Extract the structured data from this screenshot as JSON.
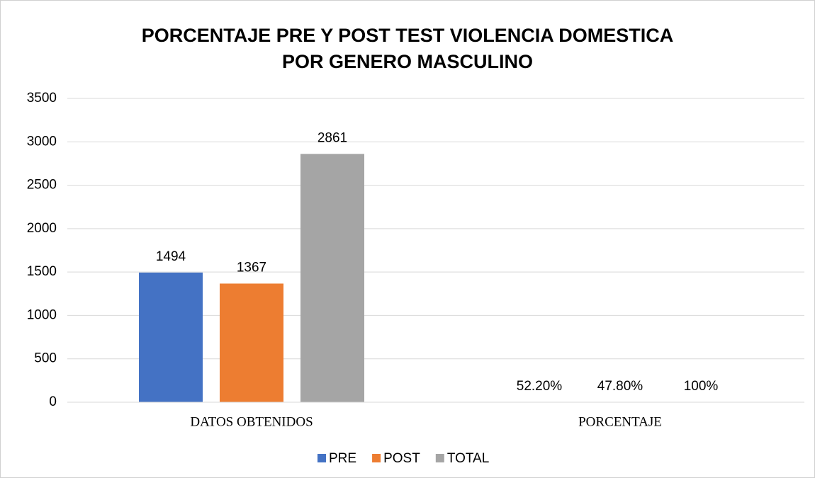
{
  "chart_data": {
    "type": "bar",
    "title": [
      "PORCENTAJE PRE Y POST TEST VIOLENCIA DOMESTICA",
      "POR GENERO MASCULINO"
    ],
    "categories": [
      "DATOS OBTENIDOS",
      "PORCENTAJE"
    ],
    "series": [
      {
        "name": "PRE",
        "color": "#4472c4",
        "values": [
          1494,
          0.522
        ],
        "value_labels": [
          "1494",
          "52.20%"
        ]
      },
      {
        "name": "POST",
        "color": "#ed7d31",
        "values": [
          1367,
          0.478
        ],
        "value_labels": [
          "1367",
          "47.80%"
        ]
      },
      {
        "name": "TOTAL",
        "color": "#a5a5a5",
        "values": [
          2861,
          1
        ],
        "value_labels": [
          "2861",
          "100%"
        ]
      }
    ],
    "ylim": [
      0,
      3500
    ],
    "yticks": [
      0,
      500,
      1000,
      1500,
      2000,
      2500,
      3000,
      3500
    ],
    "grid": true,
    "legend": "bottom"
  }
}
